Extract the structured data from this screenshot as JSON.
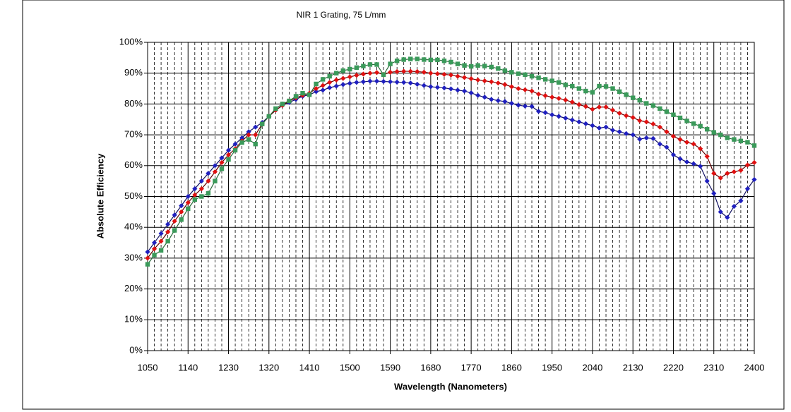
{
  "chart_data": {
    "type": "line",
    "subtitle": "NIR 1 Grating, 75 L/mm",
    "xlabel": "Wavelength (Nanometers)",
    "ylabel": "Absolute Efficiency",
    "x": [
      1050,
      1065,
      1080,
      1095,
      1110,
      1125,
      1140,
      1155,
      1170,
      1185,
      1200,
      1215,
      1230,
      1245,
      1260,
      1275,
      1290,
      1305,
      1320,
      1335,
      1350,
      1365,
      1380,
      1395,
      1410,
      1425,
      1440,
      1455,
      1470,
      1485,
      1500,
      1515,
      1530,
      1545,
      1560,
      1575,
      1590,
      1605,
      1620,
      1635,
      1650,
      1665,
      1680,
      1695,
      1710,
      1725,
      1740,
      1755,
      1770,
      1785,
      1800,
      1815,
      1830,
      1845,
      1860,
      1875,
      1890,
      1905,
      1920,
      1935,
      1950,
      1965,
      1980,
      1995,
      2010,
      2025,
      2040,
      2055,
      2070,
      2085,
      2100,
      2115,
      2130,
      2145,
      2160,
      2175,
      2190,
      2205,
      2220,
      2235,
      2250,
      2265,
      2280,
      2295,
      2310,
      2325,
      2340,
      2355,
      2370,
      2385,
      2400
    ],
    "series": [
      {
        "color": "#1f1fbf",
        "line_color": "#101060",
        "marker": "diamond",
        "values": [
          32,
          35,
          38,
          41,
          44,
          47,
          50,
          52.5,
          55,
          57.5,
          60,
          62.5,
          65,
          67,
          69,
          71,
          72.5,
          74,
          76,
          78,
          79.5,
          80.5,
          81.5,
          82.5,
          83,
          84,
          84.5,
          85.3,
          85.8,
          86.3,
          86.7,
          87,
          87.2,
          87.4,
          87.4,
          87.3,
          87.2,
          87.1,
          87,
          86.8,
          86.4,
          86,
          85.6,
          85.4,
          85.2,
          84.9,
          84.5,
          84.2,
          83.6,
          82.8,
          82.2,
          81.5,
          81.1,
          80.8,
          80.2,
          79.6,
          79.3,
          79.2,
          77.6,
          77.2,
          76.5,
          76,
          75.4,
          74.8,
          74.2,
          73.6,
          73,
          72.2,
          72.5,
          71.5,
          71,
          70.4,
          70,
          68.6,
          69,
          68.8,
          67,
          66,
          63.5,
          62.2,
          61.2,
          60.6,
          59.8,
          55,
          51,
          45,
          43.2,
          46.8,
          48.6,
          52.5,
          55.5
        ]
      },
      {
        "color": "#e01010",
        "line_color": "#600000",
        "marker": "diamond",
        "values": [
          30,
          33,
          35.5,
          38.5,
          42,
          45,
          48,
          50.5,
          52.5,
          55,
          58,
          61,
          63.5,
          65.5,
          68,
          70,
          70,
          73.5,
          76,
          78,
          79.5,
          81,
          82,
          82.8,
          83.5,
          85,
          86,
          87,
          87.8,
          88.3,
          88.8,
          89.3,
          89.7,
          90,
          90.2,
          89.6,
          90.3,
          90.5,
          90.6,
          90.6,
          90.5,
          90.3,
          90,
          89.8,
          89.6,
          89.4,
          89,
          88.6,
          88.2,
          87.8,
          87.5,
          87.2,
          86.8,
          86.3,
          85.6,
          85,
          84.6,
          84.2,
          83.2,
          82.7,
          82.2,
          81.8,
          81.3,
          80.6,
          79.8,
          79.2,
          78.3,
          79,
          79,
          78,
          77,
          76.2,
          75.6,
          74.6,
          74.2,
          73.5,
          72.5,
          71,
          69.5,
          68.5,
          67.6,
          67,
          65.5,
          63,
          57.5,
          56,
          57.5,
          58,
          58.5,
          60.2,
          61
        ]
      },
      {
        "color": "#3a9a5a",
        "line_color": "#2a6a3a",
        "marker": "square",
        "values": [
          28,
          31,
          32.5,
          35.5,
          39,
          42.5,
          46,
          49,
          50,
          51,
          55,
          59,
          62,
          65,
          67.5,
          68.5,
          67,
          73.5,
          76,
          78.5,
          80,
          81,
          82.5,
          83.5,
          83,
          86.5,
          88,
          89,
          90,
          90.8,
          91.3,
          91.8,
          92.3,
          92.8,
          92.8,
          89.5,
          93,
          94,
          94.4,
          94.6,
          94.6,
          94.4,
          94.3,
          94.3,
          94,
          93.6,
          93,
          92.5,
          92.2,
          92.5,
          92.3,
          92,
          91.5,
          90.8,
          90.3,
          89.8,
          89.5,
          89,
          88.5,
          88,
          87.5,
          87,
          86.2,
          85.8,
          85,
          84.2,
          83.8,
          85.8,
          85.7,
          85,
          84,
          83,
          82,
          81.2,
          80.2,
          79.5,
          78.5,
          77.5,
          76.5,
          75.5,
          74.5,
          73.6,
          72.8,
          71.8,
          70.8,
          70,
          69,
          68.5,
          68,
          67.6,
          66.5
        ]
      }
    ],
    "xlim": [
      1050,
      2400
    ],
    "xticks": [
      1050,
      1140,
      1230,
      1320,
      1410,
      1500,
      1590,
      1680,
      1770,
      1860,
      1950,
      2040,
      2130,
      2220,
      2310,
      2400
    ],
    "xminorticks": [
      1065,
      1080,
      1095,
      1110,
      1125,
      1155,
      1170,
      1185,
      1200,
      1215,
      1245,
      1260,
      1275,
      1290,
      1305,
      1335,
      1350,
      1365,
      1380,
      1395,
      1425,
      1440,
      1455,
      1470,
      1485,
      1515,
      1530,
      1545,
      1560,
      1575,
      1605,
      1620,
      1635,
      1650,
      1665,
      1695,
      1710,
      1725,
      1740,
      1755,
      1785,
      1800,
      1815,
      1830,
      1845,
      1875,
      1890,
      1905,
      1920,
      1935,
      1965,
      1980,
      1995,
      2010,
      2025,
      2055,
      2070,
      2085,
      2100,
      2115,
      2145,
      2160,
      2175,
      2190,
      2205,
      2235,
      2250,
      2265,
      2280,
      2295,
      2325,
      2340,
      2355,
      2370,
      2385
    ],
    "ylim": [
      0,
      100
    ],
    "yticks": [
      {
        "value": 0,
        "label": "0%"
      },
      {
        "value": 10,
        "label": "10%"
      },
      {
        "value": 20,
        "label": "20%"
      },
      {
        "value": 30,
        "label": "30%"
      },
      {
        "value": 40,
        "label": "40%"
      },
      {
        "value": 50,
        "label": "50%"
      },
      {
        "value": 60,
        "label": "60%"
      },
      {
        "value": 70,
        "label": "70%"
      },
      {
        "value": 80,
        "label": "80%"
      },
      {
        "value": 90,
        "label": "90%"
      },
      {
        "value": 100,
        "label": "100%"
      }
    ],
    "grid": true
  }
}
